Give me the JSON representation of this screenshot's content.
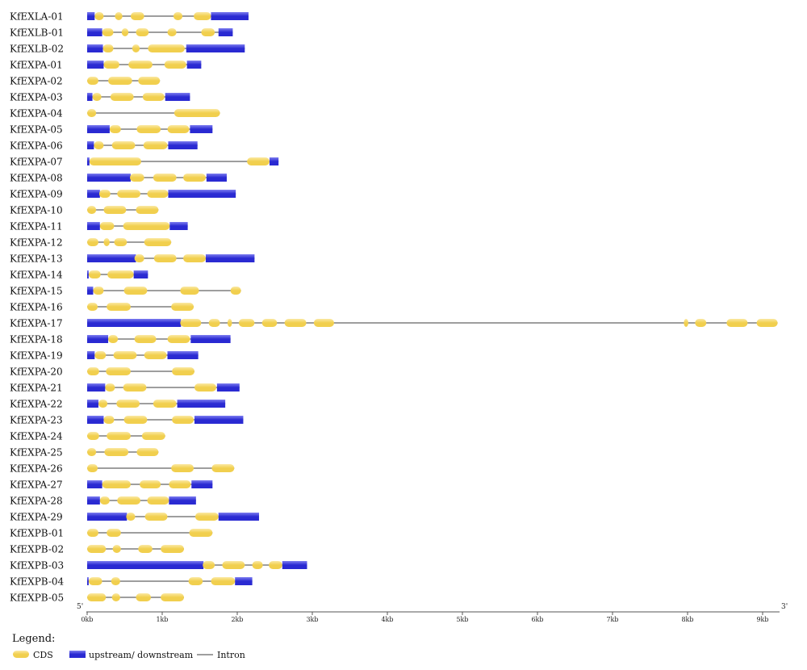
{
  "diagram": {
    "five_prime": "5'",
    "three_prime": "3'",
    "axis_unit": "kb",
    "axis_ticks": [
      "0kb",
      "1kb",
      "2kb",
      "3kb",
      "4kb",
      "5kb",
      "6kb",
      "7kb",
      "8kb",
      "9kb"
    ],
    "legend": {
      "title": "Legend:",
      "cds_label": "CDS",
      "utr_label": "upstream/ downstream",
      "intron_label": "Intron"
    },
    "colors": {
      "cds_fill": "#f1cf4e",
      "cds_highlight": "#fbe9a3",
      "utr_fill": "#2a2ad2",
      "utr_highlight": "#7d7df0",
      "intron": "#7f7f7f",
      "axis": "#555555"
    },
    "genes": [
      {
        "name": "KfEXLA-01",
        "length_kb": 2.15,
        "utr": [
          [
            0,
            0.1
          ],
          [
            1.65,
            2.15
          ]
        ],
        "cds": [
          [
            0.1,
            0.22
          ],
          [
            0.37,
            0.47
          ],
          [
            0.58,
            0.76
          ],
          [
            1.15,
            1.27
          ],
          [
            1.42,
            1.65
          ]
        ]
      },
      {
        "name": "KfEXLB-01",
        "length_kb": 1.94,
        "utr": [
          [
            0,
            0.2
          ],
          [
            1.75,
            1.94
          ]
        ],
        "cds": [
          [
            0.2,
            0.35
          ],
          [
            0.46,
            0.55
          ],
          [
            0.65,
            0.82
          ],
          [
            1.07,
            1.19
          ],
          [
            1.52,
            1.7
          ]
        ]
      },
      {
        "name": "KfEXLB-02",
        "length_kb": 2.1,
        "utr": [
          [
            0,
            0.21
          ],
          [
            1.32,
            2.1
          ]
        ],
        "cds": [
          [
            0.21,
            0.35
          ],
          [
            0.6,
            0.7
          ],
          [
            0.81,
            1.3
          ]
        ]
      },
      {
        "name": "KfEXPA-01",
        "length_kb": 1.52,
        "utr": [
          [
            0,
            0.22
          ],
          [
            1.33,
            1.52
          ]
        ],
        "cds": [
          [
            0.22,
            0.43
          ],
          [
            0.55,
            0.87
          ],
          [
            1.03,
            1.32
          ]
        ]
      },
      {
        "name": "KfEXPA-02",
        "length_kb": 0.97,
        "utr": [],
        "cds": [
          [
            0,
            0.15
          ],
          [
            0.28,
            0.6
          ],
          [
            0.68,
            0.97
          ]
        ]
      },
      {
        "name": "KfEXPA-03",
        "length_kb": 1.37,
        "utr": [
          [
            0,
            0.07
          ],
          [
            1.04,
            1.37
          ]
        ],
        "cds": [
          [
            0.07,
            0.19
          ],
          [
            0.31,
            0.62
          ],
          [
            0.74,
            1.03
          ]
        ]
      },
      {
        "name": "KfEXPA-04",
        "length_kb": 1.77,
        "utr": [],
        "cds": [
          [
            0,
            0.12
          ],
          [
            1.16,
            1.77
          ]
        ]
      },
      {
        "name": "KfEXPA-05",
        "length_kb": 1.67,
        "utr": [
          [
            0,
            0.3
          ],
          [
            1.37,
            1.67
          ]
        ],
        "cds": [
          [
            0.3,
            0.45
          ],
          [
            0.66,
            0.98
          ],
          [
            1.07,
            1.36
          ]
        ]
      },
      {
        "name": "KfEXPA-06",
        "length_kb": 1.47,
        "utr": [
          [
            0,
            0.09
          ],
          [
            1.08,
            1.47
          ]
        ],
        "cds": [
          [
            0.09,
            0.22
          ],
          [
            0.33,
            0.64
          ],
          [
            0.75,
            1.07
          ]
        ]
      },
      {
        "name": "KfEXPA-07",
        "length_kb": 2.55,
        "utr": [
          [
            0,
            0.03
          ],
          [
            2.43,
            2.55
          ]
        ],
        "cds": [
          [
            0.03,
            0.72
          ],
          [
            2.13,
            2.43
          ]
        ]
      },
      {
        "name": "KfEXPA-08",
        "length_kb": 1.86,
        "utr": [
          [
            0,
            0.58
          ],
          [
            1.59,
            1.86
          ]
        ],
        "cds": [
          [
            0.57,
            0.76
          ],
          [
            0.88,
            1.19
          ],
          [
            1.28,
            1.58
          ]
        ]
      },
      {
        "name": "KfEXPA-09",
        "length_kb": 1.98,
        "utr": [
          [
            0,
            0.17
          ],
          [
            1.08,
            1.98
          ]
        ],
        "cds": [
          [
            0.16,
            0.31
          ],
          [
            0.4,
            0.71
          ],
          [
            0.8,
            1.08
          ]
        ]
      },
      {
        "name": "KfEXPA-10",
        "length_kb": 0.95,
        "utr": [],
        "cds": [
          [
            0,
            0.12
          ],
          [
            0.22,
            0.52
          ],
          [
            0.65,
            0.95
          ]
        ]
      },
      {
        "name": "KfEXPA-11",
        "length_kb": 1.34,
        "utr": [
          [
            0,
            0.17
          ],
          [
            1.1,
            1.34
          ]
        ],
        "cds": [
          [
            0.17,
            0.36
          ],
          [
            0.48,
            1.1
          ]
        ]
      },
      {
        "name": "KfEXPA-12",
        "length_kb": 1.12,
        "utr": [],
        "cds": [
          [
            0,
            0.15
          ],
          [
            0.22,
            0.3
          ],
          [
            0.36,
            0.53
          ],
          [
            0.76,
            1.12
          ]
        ]
      },
      {
        "name": "KfEXPA-13",
        "length_kb": 2.23,
        "utr": [
          [
            0,
            0.65
          ],
          [
            1.58,
            2.23
          ]
        ],
        "cds": [
          [
            0.63,
            0.76
          ],
          [
            0.89,
            1.19
          ],
          [
            1.28,
            1.58
          ]
        ]
      },
      {
        "name": "KfEXPA-14",
        "length_kb": 0.81,
        "utr": [
          [
            0,
            0.02
          ],
          [
            0.62,
            0.81
          ]
        ],
        "cds": [
          [
            0.02,
            0.18
          ],
          [
            0.27,
            0.62
          ]
        ]
      },
      {
        "name": "KfEXPA-15",
        "length_kb": 2.05,
        "utr": [
          [
            0,
            0.08
          ]
        ],
        "cds": [
          [
            0.08,
            0.22
          ],
          [
            0.49,
            0.8
          ],
          [
            1.24,
            1.49
          ],
          [
            1.91,
            2.05
          ]
        ]
      },
      {
        "name": "KfEXPA-16",
        "length_kb": 1.42,
        "utr": [],
        "cds": [
          [
            0,
            0.14
          ],
          [
            0.26,
            0.58
          ],
          [
            1.12,
            1.42
          ]
        ]
      },
      {
        "name": "KfEXPA-17",
        "length_kb": 9.2,
        "utr": [
          [
            0,
            1.25
          ]
        ],
        "cds": [
          [
            1.24,
            1.52
          ],
          [
            1.62,
            1.77
          ],
          [
            1.87,
            1.93
          ],
          [
            2.02,
            2.23
          ],
          [
            2.33,
            2.53
          ],
          [
            2.63,
            2.92
          ],
          [
            3.02,
            3.29
          ],
          [
            7.95,
            8.01
          ],
          [
            8.1,
            8.25
          ],
          [
            8.52,
            8.8
          ],
          [
            8.92,
            9.2
          ]
        ]
      },
      {
        "name": "KfEXPA-18",
        "length_kb": 1.91,
        "utr": [
          [
            0,
            0.28
          ],
          [
            1.38,
            1.91
          ]
        ],
        "cds": [
          [
            0.28,
            0.41
          ],
          [
            0.63,
            0.92
          ],
          [
            1.07,
            1.37
          ]
        ]
      },
      {
        "name": "KfEXPA-19",
        "length_kb": 1.48,
        "utr": [
          [
            0,
            0.1
          ],
          [
            1.07,
            1.48
          ]
        ],
        "cds": [
          [
            0.1,
            0.25
          ],
          [
            0.35,
            0.66
          ],
          [
            0.76,
            1.06
          ]
        ]
      },
      {
        "name": "KfEXPA-20",
        "length_kb": 1.43,
        "utr": [],
        "cds": [
          [
            0,
            0.16
          ],
          [
            0.25,
            0.58
          ],
          [
            1.13,
            1.43
          ]
        ]
      },
      {
        "name": "KfEXPA-21",
        "length_kb": 2.03,
        "utr": [
          [
            0,
            0.24
          ],
          [
            1.73,
            2.03
          ]
        ],
        "cds": [
          [
            0.24,
            0.37
          ],
          [
            0.48,
            0.79
          ],
          [
            1.43,
            1.72
          ]
        ]
      },
      {
        "name": "KfEXPA-22",
        "length_kb": 1.84,
        "utr": [
          [
            0,
            0.15
          ],
          [
            1.2,
            1.84
          ]
        ],
        "cds": [
          [
            0.15,
            0.27
          ],
          [
            0.39,
            0.7
          ],
          [
            0.88,
            1.19
          ]
        ]
      },
      {
        "name": "KfEXPA-23",
        "length_kb": 2.08,
        "utr": [
          [
            0,
            0.22
          ],
          [
            1.43,
            2.08
          ]
        ],
        "cds": [
          [
            0.22,
            0.36
          ],
          [
            0.49,
            0.8
          ],
          [
            1.13,
            1.42
          ]
        ]
      },
      {
        "name": "KfEXPA-24",
        "length_kb": 1.04,
        "utr": [],
        "cds": [
          [
            0,
            0.16
          ],
          [
            0.26,
            0.58
          ],
          [
            0.73,
            1.04
          ]
        ]
      },
      {
        "name": "KfEXPA-25",
        "length_kb": 0.95,
        "utr": [],
        "cds": [
          [
            0,
            0.12
          ],
          [
            0.23,
            0.55
          ],
          [
            0.66,
            0.95
          ]
        ]
      },
      {
        "name": "KfEXPA-26",
        "length_kb": 1.96,
        "utr": [],
        "cds": [
          [
            0,
            0.14
          ],
          [
            1.12,
            1.42
          ],
          [
            1.66,
            1.96
          ]
        ]
      },
      {
        "name": "KfEXPA-27",
        "length_kb": 1.67,
        "utr": [
          [
            0,
            0.2
          ],
          [
            1.39,
            1.67
          ]
        ],
        "cds": [
          [
            0.2,
            0.58
          ],
          [
            0.7,
            0.98
          ],
          [
            1.09,
            1.38
          ]
        ]
      },
      {
        "name": "KfEXPA-28",
        "length_kb": 1.45,
        "utr": [
          [
            0,
            0.17
          ],
          [
            1.09,
            1.45
          ]
        ],
        "cds": [
          [
            0.17,
            0.3
          ],
          [
            0.4,
            0.71
          ],
          [
            0.8,
            1.09
          ]
        ]
      },
      {
        "name": "KfEXPA-29",
        "length_kb": 2.29,
        "utr": [
          [
            0,
            0.53
          ],
          [
            1.75,
            2.29
          ]
        ],
        "cds": [
          [
            0.52,
            0.64
          ],
          [
            0.77,
            1.07
          ],
          [
            1.44,
            1.75
          ]
        ]
      },
      {
        "name": "KfEXPB-01",
        "length_kb": 1.67,
        "utr": [],
        "cds": [
          [
            0,
            0.15
          ],
          [
            0.26,
            0.45
          ],
          [
            1.36,
            1.67
          ]
        ]
      },
      {
        "name": "KfEXPB-02",
        "length_kb": 1.29,
        "utr": [],
        "cds": [
          [
            0,
            0.25
          ],
          [
            0.34,
            0.45
          ],
          [
            0.68,
            0.87
          ],
          [
            0.98,
            1.29
          ]
        ]
      },
      {
        "name": "KfEXPB-03",
        "length_kb": 2.93,
        "utr": [
          [
            0,
            1.55
          ],
          [
            2.6,
            2.93
          ]
        ],
        "cds": [
          [
            1.54,
            1.7
          ],
          [
            1.8,
            2.1
          ],
          [
            2.2,
            2.34
          ],
          [
            2.42,
            2.6
          ]
        ]
      },
      {
        "name": "KfEXPB-04",
        "length_kb": 2.2,
        "utr": [
          [
            0,
            0.02
          ],
          [
            1.97,
            2.2
          ]
        ],
        "cds": [
          [
            0.02,
            0.2
          ],
          [
            0.32,
            0.44
          ],
          [
            1.35,
            1.54
          ],
          [
            1.65,
            1.97
          ]
        ]
      },
      {
        "name": "KfEXPB-05",
        "length_kb": 1.29,
        "utr": [],
        "cds": [
          [
            0,
            0.25
          ],
          [
            0.33,
            0.44
          ],
          [
            0.65,
            0.85
          ],
          [
            0.98,
            1.29
          ]
        ]
      }
    ]
  }
}
